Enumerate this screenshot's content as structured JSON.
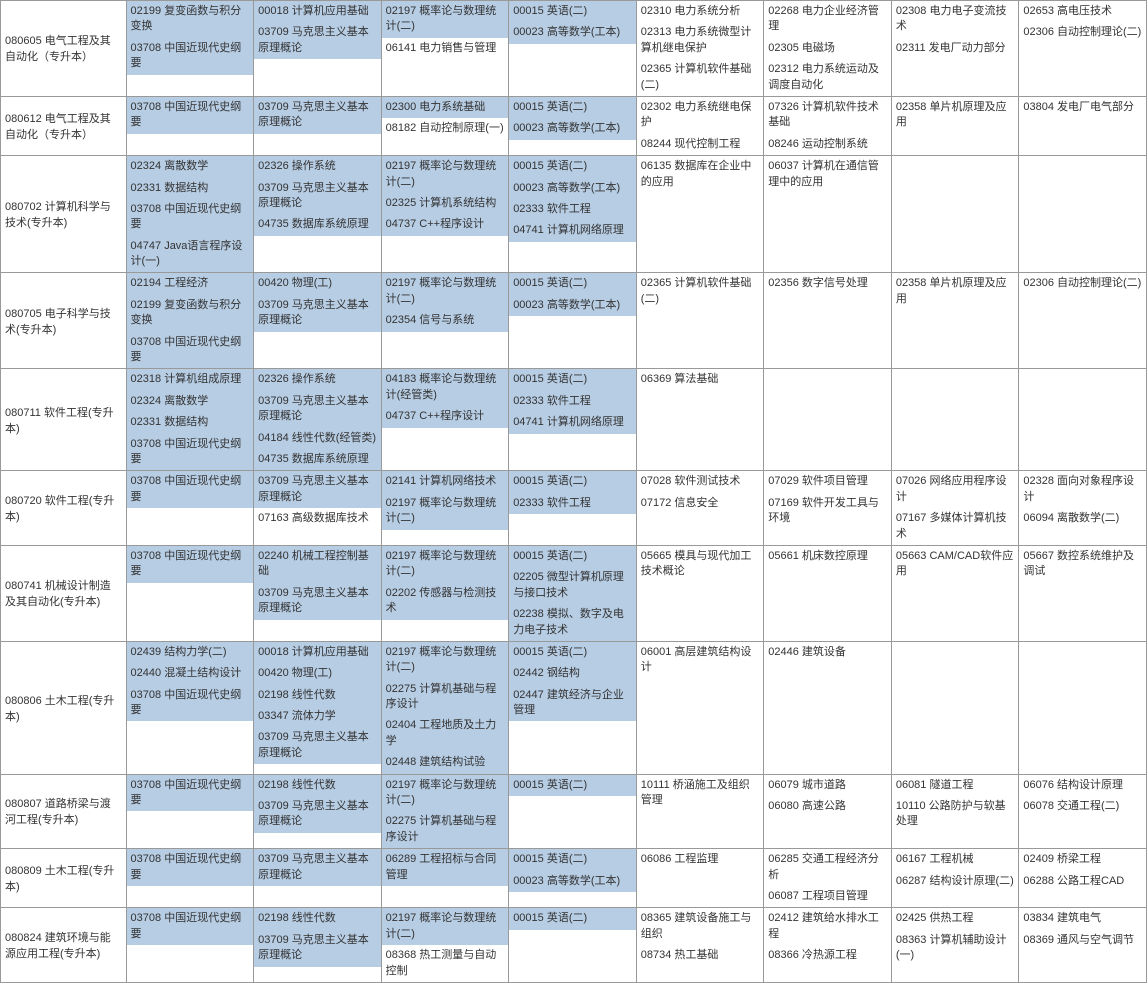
{
  "colors": {
    "highlight": "#b7cde4",
    "border": "#999",
    "text": "#333"
  },
  "rows": [
    {
      "major": "080605 电气工程及其自动化（专升本）",
      "cols": [
        [
          {
            "t": "02199 复变函数与积分变换",
            "h": 1
          },
          {
            "t": "03708 中国近现代史纲要",
            "h": 1
          }
        ],
        [
          {
            "t": "00018 计算机应用基础",
            "h": 1
          },
          {
            "t": "03709 马克思主义基本原理概论",
            "h": 1
          }
        ],
        [
          {
            "t": "02197 概率论与数理统计(二)",
            "h": 1
          },
          {
            "t": "06141 电力销售与管理",
            "h": 0
          }
        ],
        [
          {
            "t": "00015 英语(二)",
            "h": 1
          },
          {
            "t": "00023 高等数学(工本)",
            "h": 1
          }
        ],
        [
          {
            "t": "02310 电力系统分析",
            "h": 0
          },
          {
            "t": "02313 电力系统微型计算机继电保护",
            "h": 0
          },
          {
            "t": "02365 计算机软件基础(二)",
            "h": 0
          }
        ],
        [
          {
            "t": "02268 电力企业经济管理",
            "h": 0
          },
          {
            "t": "02305 电磁场",
            "h": 0
          },
          {
            "t": "02312 电力系统运动及调度自动化",
            "h": 0
          }
        ],
        [
          {
            "t": "02308 电力电子变流技术",
            "h": 0
          },
          {
            "t": "02311 发电厂动力部分",
            "h": 0
          }
        ],
        [
          {
            "t": "02653 高电压技术",
            "h": 0
          },
          {
            "t": "02306 自动控制理论(二)",
            "h": 0
          }
        ]
      ]
    },
    {
      "major": "080612 电气工程及其自动化（专升本）",
      "cols": [
        [
          {
            "t": "03708 中国近现代史纲要",
            "h": 1
          }
        ],
        [
          {
            "t": "03709 马克思主义基本原理概论",
            "h": 1
          }
        ],
        [
          {
            "t": "02300 电力系统基础",
            "h": 1
          },
          {
            "t": "08182 自动控制原理(一)",
            "h": 0
          }
        ],
        [
          {
            "t": "00015 英语(二)",
            "h": 1
          },
          {
            "t": "00023 高等数学(工本)",
            "h": 1
          }
        ],
        [
          {
            "t": "02302 电力系统继电保护",
            "h": 0
          },
          {
            "t": "08244 现代控制工程",
            "h": 0
          }
        ],
        [
          {
            "t": "07326 计算机软件技术基础",
            "h": 0
          },
          {
            "t": "08246 运动控制系统",
            "h": 0
          }
        ],
        [
          {
            "t": "02358 单片机原理及应用",
            "h": 0
          }
        ],
        [
          {
            "t": "03804 发电厂电气部分",
            "h": 0
          }
        ]
      ]
    },
    {
      "major": "080702 计算机科学与技术(专升本)",
      "cols": [
        [
          {
            "t": "02324 离散数学",
            "h": 1
          },
          {
            "t": "02331 数据结构",
            "h": 1
          },
          {
            "t": "03708 中国近现代史纲要",
            "h": 1
          },
          {
            "t": "04747 Java语言程序设计(一)",
            "h": 1
          }
        ],
        [
          {
            "t": "02326 操作系统",
            "h": 1
          },
          {
            "t": "03709 马克思主义基本原理概论",
            "h": 1
          },
          {
            "t": "04735 数据库系统原理",
            "h": 1
          }
        ],
        [
          {
            "t": "02197 概率论与数理统计(二)",
            "h": 1
          },
          {
            "t": "02325 计算机系统结构",
            "h": 1
          },
          {
            "t": "04737 C++程序设计",
            "h": 1
          }
        ],
        [
          {
            "t": "00015 英语(二)",
            "h": 1
          },
          {
            "t": "00023 高等数学(工本)",
            "h": 1
          },
          {
            "t": "02333 软件工程",
            "h": 1
          },
          {
            "t": "04741 计算机网络原理",
            "h": 1
          }
        ],
        [
          {
            "t": "06135 数据库在企业中的应用",
            "h": 0
          }
        ],
        [
          {
            "t": "06037 计算机在通信管理中的应用",
            "h": 0
          }
        ],
        [],
        []
      ]
    },
    {
      "major": "080705 电子科学与技术(专升本)",
      "cols": [
        [
          {
            "t": "02194 工程经济",
            "h": 1
          },
          {
            "t": "02199 复变函数与积分变换",
            "h": 1
          },
          {
            "t": "03708 中国近现代史纲要",
            "h": 1
          }
        ],
        [
          {
            "t": "00420 物理(工)",
            "h": 1
          },
          {
            "t": "03709 马克思主义基本原理概论",
            "h": 1
          }
        ],
        [
          {
            "t": "02197 概率论与数理统计(二)",
            "h": 1
          },
          {
            "t": "02354 信号与系统",
            "h": 1
          }
        ],
        [
          {
            "t": "00015 英语(二)",
            "h": 1
          },
          {
            "t": "00023 高等数学(工本)",
            "h": 1
          }
        ],
        [
          {
            "t": "02365 计算机软件基础(二)",
            "h": 0
          }
        ],
        [
          {
            "t": "02356 数字信号处理",
            "h": 0
          }
        ],
        [
          {
            "t": "02358 单片机原理及应用",
            "h": 0
          }
        ],
        [
          {
            "t": "02306 自动控制理论(二)",
            "h": 0
          }
        ]
      ]
    },
    {
      "major": "080711 软件工程(专升本)",
      "cols": [
        [
          {
            "t": "02318 计算机组成原理",
            "h": 1
          },
          {
            "t": "02324 离散数学",
            "h": 1
          },
          {
            "t": "02331 数据结构",
            "h": 1
          },
          {
            "t": "03708 中国近现代史纲要",
            "h": 1
          }
        ],
        [
          {
            "t": "02326 操作系统",
            "h": 1
          },
          {
            "t": "03709 马克思主义基本原理概论",
            "h": 1
          },
          {
            "t": "04184 线性代数(经管类)",
            "h": 1
          },
          {
            "t": "04735 数据库系统原理",
            "h": 1
          }
        ],
        [
          {
            "t": "04183 概率论与数理统计(经管类)",
            "h": 1
          },
          {
            "t": "04737 C++程序设计",
            "h": 1
          }
        ],
        [
          {
            "t": "00015 英语(二)",
            "h": 1
          },
          {
            "t": "02333 软件工程",
            "h": 1
          },
          {
            "t": "04741 计算机网络原理",
            "h": 1
          }
        ],
        [
          {
            "t": "06369 算法基础",
            "h": 0
          }
        ],
        [],
        [],
        []
      ]
    },
    {
      "major": "080720 软件工程(专升本)",
      "cols": [
        [
          {
            "t": "03708 中国近现代史纲要",
            "h": 1
          }
        ],
        [
          {
            "t": "03709 马克思主义基本原理概论",
            "h": 1
          },
          {
            "t": "07163 高级数据库技术",
            "h": 0
          }
        ],
        [
          {
            "t": "02141 计算机网络技术",
            "h": 1
          },
          {
            "t": "02197 概率论与数理统计(二)",
            "h": 1
          }
        ],
        [
          {
            "t": "00015 英语(二)",
            "h": 1
          },
          {
            "t": "02333 软件工程",
            "h": 1
          }
        ],
        [
          {
            "t": "07028 软件测试技术",
            "h": 0
          },
          {
            "t": "07172 信息安全",
            "h": 0
          }
        ],
        [
          {
            "t": "07029 软件项目管理",
            "h": 0
          },
          {
            "t": "07169 软件开发工具与环境",
            "h": 0
          }
        ],
        [
          {
            "t": "07026 网络应用程序设计",
            "h": 0
          },
          {
            "t": "07167 多媒体计算机技术",
            "h": 0
          }
        ],
        [
          {
            "t": "02328 面向对象程序设计",
            "h": 0
          },
          {
            "t": "06094 离散数学(二)",
            "h": 0
          }
        ]
      ]
    },
    {
      "major": "080741 机械设计制造及其自动化(专升本)",
      "cols": [
        [
          {
            "t": "03708 中国近现代史纲要",
            "h": 1
          }
        ],
        [
          {
            "t": "02240 机械工程控制基础",
            "h": 1
          },
          {
            "t": "03709 马克思主义基本原理概论",
            "h": 1
          }
        ],
        [
          {
            "t": "02197 概率论与数理统计(二)",
            "h": 1
          },
          {
            "t": "02202 传感器与检测技术",
            "h": 1
          }
        ],
        [
          {
            "t": "00015 英语(二)",
            "h": 1
          },
          {
            "t": "02205 微型计算机原理与接口技术",
            "h": 1
          },
          {
            "t": "02238 模拟、数字及电力电子技术",
            "h": 1
          }
        ],
        [
          {
            "t": "05665 模具与现代加工技术概论",
            "h": 0
          }
        ],
        [
          {
            "t": "05661 机床数控原理",
            "h": 0
          }
        ],
        [
          {
            "t": "05663 CAM/CAD软件应用",
            "h": 0
          }
        ],
        [
          {
            "t": "05667 数控系统维护及调试",
            "h": 0
          }
        ]
      ]
    },
    {
      "major": "080806 土木工程(专升本)",
      "cols": [
        [
          {
            "t": "02439 结构力学(二)",
            "h": 1
          },
          {
            "t": "02440 混凝土结构设计",
            "h": 1
          },
          {
            "t": "03708 中国近现代史纲要",
            "h": 1
          }
        ],
        [
          {
            "t": "00018 计算机应用基础",
            "h": 1
          },
          {
            "t": "00420 物理(工)",
            "h": 1
          },
          {
            "t": "02198 线性代数",
            "h": 1
          },
          {
            "t": "03347 流体力学",
            "h": 1
          },
          {
            "t": "03709 马克思主义基本原理概论",
            "h": 1
          }
        ],
        [
          {
            "t": "02197 概率论与数理统计(二)",
            "h": 1
          },
          {
            "t": "02275 计算机基础与程序设计",
            "h": 1
          },
          {
            "t": "02404 工程地质及土力学",
            "h": 1
          },
          {
            "t": "02448 建筑结构试验",
            "h": 1
          }
        ],
        [
          {
            "t": "00015 英语(二)",
            "h": 1
          },
          {
            "t": "02442 钢结构",
            "h": 1
          },
          {
            "t": "02447 建筑经济与企业管理",
            "h": 1
          }
        ],
        [
          {
            "t": "06001 高层建筑结构设计",
            "h": 0
          }
        ],
        [
          {
            "t": "02446 建筑设备",
            "h": 0
          }
        ],
        [],
        []
      ]
    },
    {
      "major": "080807 道路桥梁与渡河工程(专升本)",
      "cols": [
        [
          {
            "t": "03708 中国近现代史纲要",
            "h": 1
          }
        ],
        [
          {
            "t": "02198 线性代数",
            "h": 1
          },
          {
            "t": "03709 马克思主义基本原理概论",
            "h": 1
          }
        ],
        [
          {
            "t": "02197 概率论与数理统计(二)",
            "h": 1
          },
          {
            "t": "02275 计算机基础与程序设计",
            "h": 1
          }
        ],
        [
          {
            "t": "00015 英语(二)",
            "h": 1
          }
        ],
        [
          {
            "t": "10111 桥涵施工及组织管理",
            "h": 0
          }
        ],
        [
          {
            "t": "06079 城市道路",
            "h": 0
          },
          {
            "t": "06080 高速公路",
            "h": 0
          }
        ],
        [
          {
            "t": "06081 隧道工程",
            "h": 0
          },
          {
            "t": "10110 公路防护与软基处理",
            "h": 0
          }
        ],
        [
          {
            "t": "06076 结构设计原理",
            "h": 0
          },
          {
            "t": "06078 交通工程(二)",
            "h": 0
          }
        ]
      ]
    },
    {
      "major": "080809 土木工程(专升本)",
      "cols": [
        [
          {
            "t": "03708 中国近现代史纲要",
            "h": 1
          }
        ],
        [
          {
            "t": "03709 马克思主义基本原理概论",
            "h": 1
          }
        ],
        [
          {
            "t": "06289 工程招标与合同管理",
            "h": 1
          }
        ],
        [
          {
            "t": "00015 英语(二)",
            "h": 1
          },
          {
            "t": "00023 高等数学(工本)",
            "h": 1
          }
        ],
        [
          {
            "t": "06086 工程监理",
            "h": 0
          }
        ],
        [
          {
            "t": "06285 交通工程经济分析",
            "h": 0
          },
          {
            "t": "06087 工程项目管理",
            "h": 0
          }
        ],
        [
          {
            "t": "06167 工程机械",
            "h": 0
          },
          {
            "t": "06287 结构设计原理(二)",
            "h": 0
          }
        ],
        [
          {
            "t": "02409 桥梁工程",
            "h": 0
          },
          {
            "t": "06288 公路工程CAD",
            "h": 0
          }
        ]
      ]
    },
    {
      "major": "080824 建筑环境与能源应用工程(专升本)",
      "cols": [
        [
          {
            "t": "03708 中国近现代史纲要",
            "h": 1
          }
        ],
        [
          {
            "t": "02198 线性代数",
            "h": 1
          },
          {
            "t": "03709 马克思主义基本原理概论",
            "h": 1
          }
        ],
        [
          {
            "t": "02197 概率论与数理统计(二)",
            "h": 1
          },
          {
            "t": "08368 热工测量与自动控制",
            "h": 0
          }
        ],
        [
          {
            "t": "00015 英语(二)",
            "h": 1
          }
        ],
        [
          {
            "t": "08365 建筑设备施工与组织",
            "h": 0
          },
          {
            "t": "08734 热工基础",
            "h": 0
          }
        ],
        [
          {
            "t": "02412 建筑给水排水工程",
            "h": 0
          },
          {
            "t": "08366 冷热源工程",
            "h": 0
          }
        ],
        [
          {
            "t": "02425 供热工程",
            "h": 0
          },
          {
            "t": "08363 计算机辅助设计(一)",
            "h": 0
          }
        ],
        [
          {
            "t": "03834 建筑电气",
            "h": 0
          },
          {
            "t": "08369 通风与空气调节",
            "h": 0
          }
        ]
      ]
    }
  ]
}
